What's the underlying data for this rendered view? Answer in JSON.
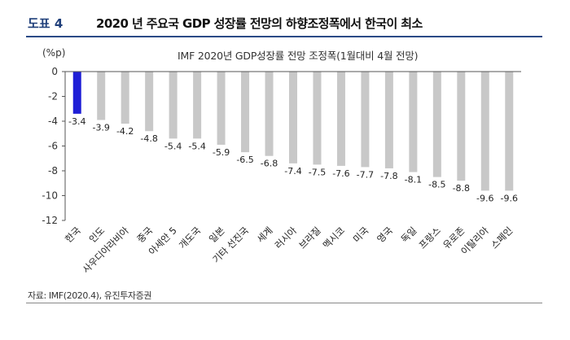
{
  "header": {
    "label": "도표 4",
    "title": "2020 년 주요국 GDP 성장률 전망의 하향조정폭에서 한국이 최소"
  },
  "source": "자료: IMF(2020.4), 유진투자증권",
  "chart_data": {
    "type": "bar",
    "title": "IMF 2020년 GDP성장률 전망 조정폭(1월대비 4월 전망)",
    "unit_label": "(%p)",
    "categories": [
      "한국",
      "인도",
      "사우디아라비아",
      "중국",
      "아세안 5",
      "개도국",
      "일본",
      "기타 선진국",
      "세계",
      "러시아",
      "브라질",
      "멕시코",
      "미국",
      "영국",
      "독일",
      "프랑스",
      "유로존",
      "이탈리아",
      "스페인"
    ],
    "values": [
      -3.4,
      -3.9,
      -4.2,
      -4.8,
      -5.4,
      -5.4,
      -5.9,
      -6.5,
      -6.8,
      -7.4,
      -7.5,
      -7.6,
      -7.7,
      -7.8,
      -8.1,
      -8.5,
      -8.8,
      -9.6,
      -9.6
    ],
    "value_labels": [
      "-3.4",
      "-3.9",
      "-4.2",
      "-4.8",
      "-5.4",
      "-5.4",
      "-5.9",
      "-6.5",
      "-6.8",
      "-7.4",
      "-7.5",
      "-7.6",
      "-7.7",
      "-7.8",
      "-8.1",
      "-8.5",
      "-8.8",
      "-9.6",
      "-9.6"
    ],
    "ylim": [
      -12,
      0
    ],
    "yticks": [
      0,
      -2,
      -4,
      -6,
      -8,
      -10,
      -12
    ],
    "colors": {
      "highlight": "#1f1fd6",
      "default": "#c8c8c8",
      "axis": "#555555"
    },
    "highlight_index": 0,
    "grid": false
  }
}
